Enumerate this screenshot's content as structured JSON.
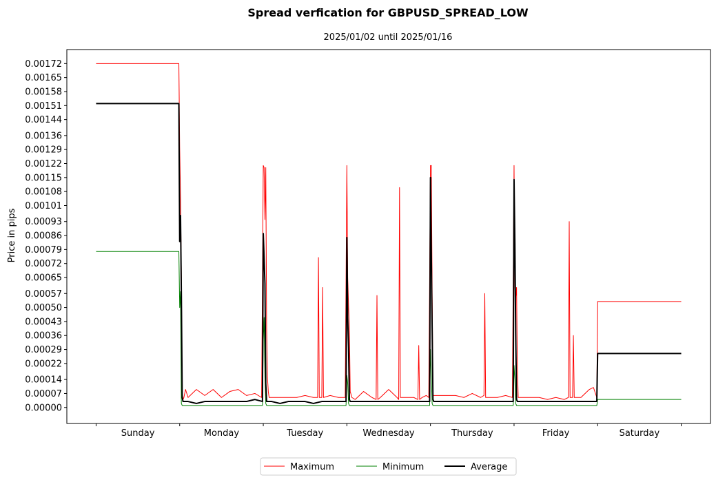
{
  "chart_data": {
    "type": "line",
    "title": "Spread verfication for GBPUSD_SPREAD_LOW",
    "subtitle": "2025/01/02 until 2025/01/16",
    "xlabel": "",
    "ylabel": "Price in pips",
    "categories": [
      "Sunday",
      "Monday",
      "Tuesday",
      "Wednesday",
      "Thursday",
      "Friday",
      "Saturday"
    ],
    "yticks": [
      "0.00000",
      "0.00007",
      "0.00014",
      "0.00022",
      "0.00029",
      "0.00036",
      "0.00043",
      "0.00050",
      "0.00057",
      "0.00065",
      "0.00072",
      "0.00079",
      "0.00086",
      "0.00093",
      "0.00101",
      "0.00108",
      "0.00115",
      "0.00122",
      "0.00129",
      "0.00136",
      "0.00144",
      "0.00151",
      "0.00158",
      "0.00165",
      "0.00172"
    ],
    "ylim": [
      -8e-05,
      0.00179
    ],
    "xlim": [
      -0.35,
      7.35
    ],
    "grid": false,
    "legend_position": "bottom-center",
    "series": [
      {
        "name": "Maximum",
        "color": "#ff0000",
        "width": 1,
        "x": [
          0,
          0.2,
          0.4,
          0.6,
          0.8,
          0.99,
          1.0,
          1.01,
          1.02,
          1.03,
          1.04,
          1.05,
          1.07,
          1.1,
          1.2,
          1.3,
          1.4,
          1.5,
          1.6,
          1.7,
          1.8,
          1.9,
          1.98,
          2.0,
          2.01,
          2.02,
          2.03,
          2.04,
          2.05,
          2.06,
          2.07,
          2.1,
          2.2,
          2.3,
          2.4,
          2.5,
          2.6,
          2.65,
          2.66,
          2.67,
          2.7,
          2.71,
          2.72,
          2.8,
          2.9,
          2.98,
          3.0,
          3.01,
          3.02,
          3.03,
          3.04,
          3.06,
          3.1,
          3.2,
          3.3,
          3.35,
          3.36,
          3.37,
          3.4,
          3.5,
          3.6,
          3.62,
          3.63,
          3.64,
          3.7,
          3.8,
          3.85,
          3.86,
          3.87,
          3.9,
          3.95,
          3.98,
          4.0,
          4.01,
          4.02,
          4.03,
          4.04,
          4.05,
          4.1,
          4.2,
          4.3,
          4.4,
          4.5,
          4.6,
          4.64,
          4.65,
          4.66,
          4.7,
          4.8,
          4.9,
          4.98,
          5.0,
          5.01,
          5.02,
          5.03,
          5.04,
          5.05,
          5.1,
          5.2,
          5.3,
          5.4,
          5.5,
          5.6,
          5.65,
          5.66,
          5.67,
          5.7,
          5.71,
          5.72,
          5.8,
          5.9,
          5.95,
          5.99,
          6.0,
          6.2,
          6.4,
          6.6,
          6.8,
          7.0
        ],
        "y": [
          0.00172,
          0.00172,
          0.00172,
          0.00172,
          0.00172,
          0.00172,
          0.0013,
          0.00105,
          0.00066,
          7e-05,
          4e-05,
          5e-05,
          9e-05,
          5e-05,
          9e-05,
          6e-05,
          9e-05,
          5e-05,
          8e-05,
          9e-05,
          6e-05,
          7e-05,
          5e-05,
          0.00121,
          0.0012,
          0.00094,
          0.0012,
          0.0004,
          0.00015,
          8e-05,
          5e-05,
          5e-05,
          5e-05,
          5e-05,
          5e-05,
          6e-05,
          5e-05,
          5e-05,
          0.00075,
          5e-05,
          5e-05,
          0.0006,
          5e-05,
          6e-05,
          5e-05,
          5e-05,
          0.00121,
          0.00065,
          0.00051,
          0.0004,
          8e-05,
          5e-05,
          4e-05,
          8e-05,
          5e-05,
          4e-05,
          0.00056,
          4e-05,
          5e-05,
          9e-05,
          5e-05,
          4e-05,
          0.0011,
          5e-05,
          5e-05,
          5e-05,
          4e-05,
          0.00031,
          4e-05,
          5e-05,
          6e-05,
          5e-05,
          0.00121,
          0.00121,
          0.0006,
          6e-05,
          6e-05,
          6e-05,
          6e-05,
          6e-05,
          6e-05,
          5e-05,
          7e-05,
          5e-05,
          6e-05,
          0.00057,
          5e-05,
          5e-05,
          5e-05,
          6e-05,
          5e-05,
          0.00121,
          0.0006,
          0.00055,
          0.0006,
          0.0002,
          5e-05,
          5e-05,
          5e-05,
          5e-05,
          4e-05,
          5e-05,
          4e-05,
          5e-05,
          0.00093,
          5e-05,
          5e-05,
          0.00036,
          5e-05,
          5e-05,
          9e-05,
          0.0001,
          5e-05,
          0.00053,
          0.00053,
          0.00053,
          0.00053,
          0.00053,
          0.00053
        ]
      },
      {
        "name": "Minimum",
        "color": "#008000",
        "width": 1,
        "x": [
          0,
          0.5,
          0.99,
          1.0,
          1.01,
          1.02,
          1.03,
          1.04,
          1.5,
          1.99,
          2.0,
          2.01,
          2.02,
          2.03,
          2.04,
          2.5,
          2.99,
          3.0,
          3.01,
          3.02,
          3.03,
          3.5,
          3.99,
          4.0,
          4.01,
          4.02,
          4.03,
          4.5,
          4.99,
          5.0,
          5.01,
          5.02,
          5.03,
          5.5,
          5.99,
          6.0,
          6.5,
          7.0
        ],
        "y": [
          0.00078,
          0.00078,
          0.00078,
          0.0005,
          0.00058,
          2e-05,
          1e-05,
          1e-05,
          1e-05,
          1e-05,
          0.00034,
          0.00045,
          0.00015,
          2e-05,
          1e-05,
          1e-05,
          1e-05,
          0.00016,
          0.00012,
          2e-05,
          1e-05,
          1e-05,
          1e-05,
          0.00029,
          0.00015,
          2e-05,
          1e-05,
          1e-05,
          1e-05,
          0.00021,
          0.00014,
          2e-05,
          1e-05,
          1e-05,
          1e-05,
          4e-05,
          4e-05,
          4e-05
        ]
      },
      {
        "name": "Average",
        "color": "#000000",
        "width": 2,
        "x": [
          0,
          0.5,
          0.99,
          1.0,
          1.01,
          1.02,
          1.03,
          1.04,
          1.1,
          1.2,
          1.3,
          1.4,
          1.5,
          1.6,
          1.7,
          1.8,
          1.9,
          1.99,
          2.0,
          2.01,
          2.02,
          2.03,
          2.04,
          2.05,
          2.1,
          2.2,
          2.3,
          2.4,
          2.5,
          2.6,
          2.7,
          2.8,
          2.9,
          2.99,
          3.0,
          3.01,
          3.02,
          3.03,
          3.04,
          3.1,
          3.2,
          3.3,
          3.4,
          3.5,
          3.6,
          3.7,
          3.8,
          3.9,
          3.99,
          4.0,
          4.01,
          4.02,
          4.03,
          4.04,
          4.1,
          4.2,
          4.3,
          4.4,
          4.5,
          4.6,
          4.7,
          4.8,
          4.9,
          4.99,
          5.0,
          5.01,
          5.02,
          5.03,
          5.04,
          5.1,
          5.2,
          5.3,
          5.4,
          5.5,
          5.6,
          5.7,
          5.8,
          5.9,
          5.99,
          6.0,
          6.5,
          7.0
        ],
        "y": [
          0.00152,
          0.00152,
          0.00152,
          0.00083,
          0.00096,
          0.00056,
          5e-05,
          3e-05,
          3e-05,
          2e-05,
          3e-05,
          3e-05,
          3e-05,
          3e-05,
          3e-05,
          3e-05,
          4e-05,
          3e-05,
          0.00087,
          0.00075,
          0.00062,
          0.00012,
          3e-05,
          3e-05,
          3e-05,
          2e-05,
          3e-05,
          3e-05,
          3e-05,
          2e-05,
          3e-05,
          3e-05,
          3e-05,
          3e-05,
          0.00085,
          0.00045,
          0.0003,
          4e-05,
          3e-05,
          3e-05,
          3e-05,
          3e-05,
          3e-05,
          3e-05,
          3e-05,
          3e-05,
          3e-05,
          3e-05,
          3e-05,
          0.00115,
          0.00077,
          0.0004,
          4e-05,
          3e-05,
          3e-05,
          3e-05,
          3e-05,
          3e-05,
          3e-05,
          3e-05,
          3e-05,
          3e-05,
          3e-05,
          3e-05,
          0.00114,
          0.00082,
          0.00037,
          4e-05,
          3e-05,
          3e-05,
          3e-05,
          3e-05,
          3e-05,
          3e-05,
          3e-05,
          3e-05,
          3e-05,
          3e-05,
          3e-05,
          0.00027,
          0.00027,
          0.00027
        ]
      }
    ]
  }
}
